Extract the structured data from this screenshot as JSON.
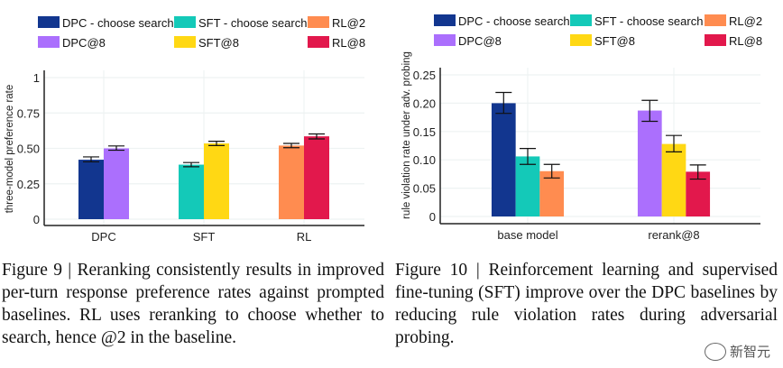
{
  "chart_data": [
    {
      "type": "bar",
      "ylabel": "three-model preference rate",
      "xlabel": "",
      "ylim": [
        0,
        1
      ],
      "yticks": [
        "0",
        "0.25",
        "0.50",
        "0.75",
        "1"
      ],
      "ytick_values": [
        0,
        0.25,
        0.5,
        0.75,
        1
      ],
      "grid": true,
      "legend": "top",
      "categories": [
        "DPC",
        "SFT",
        "RL"
      ],
      "bars": [
        {
          "category": "DPC",
          "series": "DPC - choose search",
          "value": 0.42,
          "err_low": 0.405,
          "err_high": 0.44
        },
        {
          "category": "DPC",
          "series": "DPC@8",
          "value": 0.5,
          "err_low": 0.487,
          "err_high": 0.517
        },
        {
          "category": "SFT",
          "series": "SFT - choose search",
          "value": 0.385,
          "err_low": 0.37,
          "err_high": 0.4
        },
        {
          "category": "SFT",
          "series": "SFT@8",
          "value": 0.535,
          "err_low": 0.52,
          "err_high": 0.55
        },
        {
          "category": "RL",
          "series": "RL@2",
          "value": 0.52,
          "err_low": 0.505,
          "err_high": 0.535
        },
        {
          "category": "RL",
          "series": "RL@8",
          "value": 0.585,
          "err_low": 0.567,
          "err_high": 0.602
        }
      ]
    },
    {
      "type": "bar",
      "ylabel": "rule violation rate under adv. probing",
      "xlabel": "",
      "ylim": [
        0,
        0.25
      ],
      "yticks": [
        "0",
        "0.05",
        "0.10",
        "0.15",
        "0.20",
        "0.25"
      ],
      "ytick_values": [
        0,
        0.05,
        0.1,
        0.15,
        0.2,
        0.25
      ],
      "grid": true,
      "legend": "top",
      "categories": [
        "base model",
        "rerank@8"
      ],
      "bars": [
        {
          "category": "base model",
          "series": "DPC - choose search",
          "value": 0.2,
          "err_low": 0.182,
          "err_high": 0.219
        },
        {
          "category": "base model",
          "series": "SFT - choose search",
          "value": 0.106,
          "err_low": 0.092,
          "err_high": 0.12
        },
        {
          "category": "base model",
          "series": "RL@2",
          "value": 0.08,
          "err_low": 0.068,
          "err_high": 0.092
        },
        {
          "category": "rerank@8",
          "series": "DPC@8",
          "value": 0.187,
          "err_low": 0.168,
          "err_high": 0.205
        },
        {
          "category": "rerank@8",
          "series": "SFT@8",
          "value": 0.128,
          "err_low": 0.114,
          "err_high": 0.143
        },
        {
          "category": "rerank@8",
          "series": "RL@8",
          "value": 0.079,
          "err_low": 0.066,
          "err_high": 0.091
        }
      ]
    }
  ],
  "legend": [
    {
      "name": "DPC - choose search",
      "color": "#12368f"
    },
    {
      "name": "SFT - choose search",
      "color": "#14c9b8"
    },
    {
      "name": "RL@2",
      "color": "#ff8c50"
    },
    {
      "name": "DPC@8",
      "color": "#ab6ffd"
    },
    {
      "name": "SFT@8",
      "color": "#ffd814"
    },
    {
      "name": "RL@8",
      "color": "#e2184c"
    }
  ],
  "captions": {
    "fig9": "Figure 9 | Reranking consistently results in improved per-turn response preference rates against prompted baselines. RL uses reranking to choose whether to search, hence @2 in the baseline.",
    "fig10": "Figure 10 | Reinforcement learning and supervised fine-tuning (SFT) improve over the DPC baselines by reducing rule violation rates during adversarial probing."
  },
  "watermark": "新智元"
}
